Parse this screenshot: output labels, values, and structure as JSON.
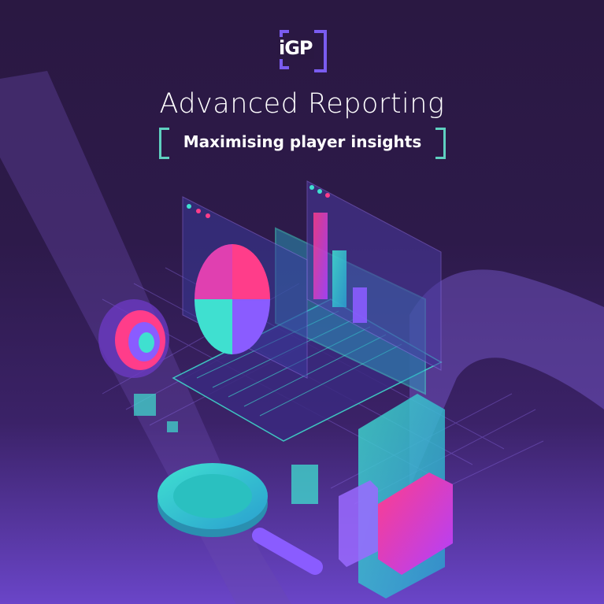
{
  "logo": {
    "text": "iGP",
    "color": "#7a5cf0"
  },
  "title": "Advanced Reporting",
  "subtitle": "Maximising player insights",
  "colors": {
    "background_top": "#2a1842",
    "background_bottom": "#6a45c8",
    "teal": "#3fe0d0",
    "pink": "#ff3d8a",
    "violet": "#8a5cff",
    "bracket": "#5fd0c0"
  }
}
